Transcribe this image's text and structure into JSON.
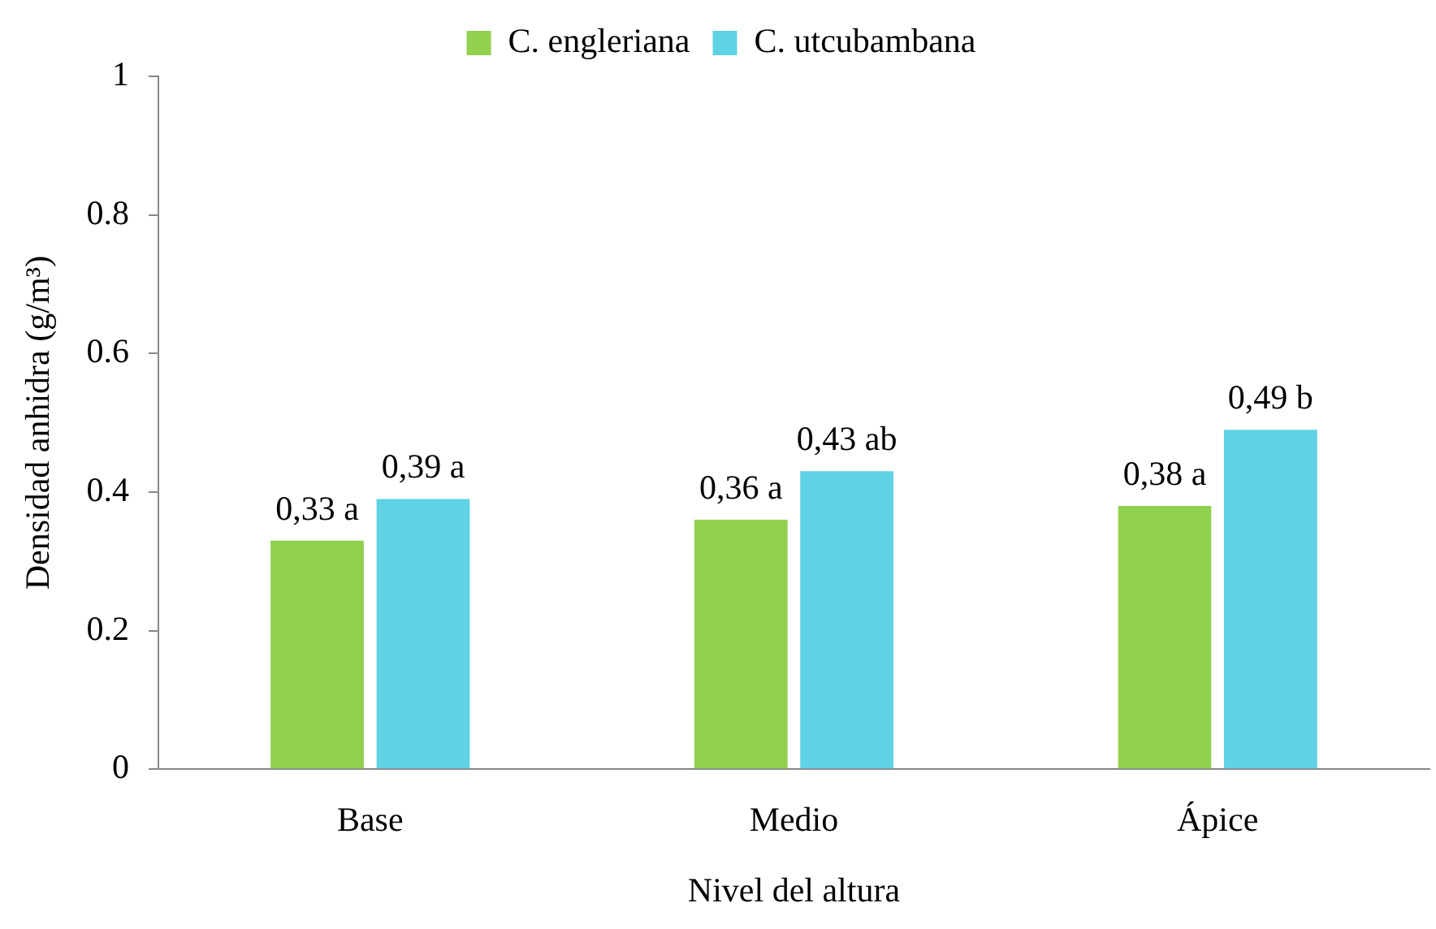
{
  "chart_data": {
    "type": "bar",
    "xlabel": "Nivel del altura",
    "ylabel": "Densidad anhidra (g/m³)",
    "categories": [
      "Base",
      "Medio",
      "Ápice"
    ],
    "series": [
      {
        "name": "C. engleriana",
        "color": "#92d050",
        "values": [
          0.33,
          0.36,
          0.38
        ],
        "value_labels": [
          "0,33 a",
          "0,36 a",
          "0,38 a"
        ]
      },
      {
        "name": "C. utcubambana",
        "color": "#5fd3e5",
        "values": [
          0.39,
          0.43,
          0.49
        ],
        "value_labels": [
          "0,39 a",
          "0,43 ab",
          "0,49 b"
        ]
      }
    ],
    "ylim": [
      0,
      1
    ],
    "yticks": [
      0,
      0.2,
      0.4,
      0.6,
      0.8,
      1
    ],
    "grid": false,
    "legend": "top"
  }
}
